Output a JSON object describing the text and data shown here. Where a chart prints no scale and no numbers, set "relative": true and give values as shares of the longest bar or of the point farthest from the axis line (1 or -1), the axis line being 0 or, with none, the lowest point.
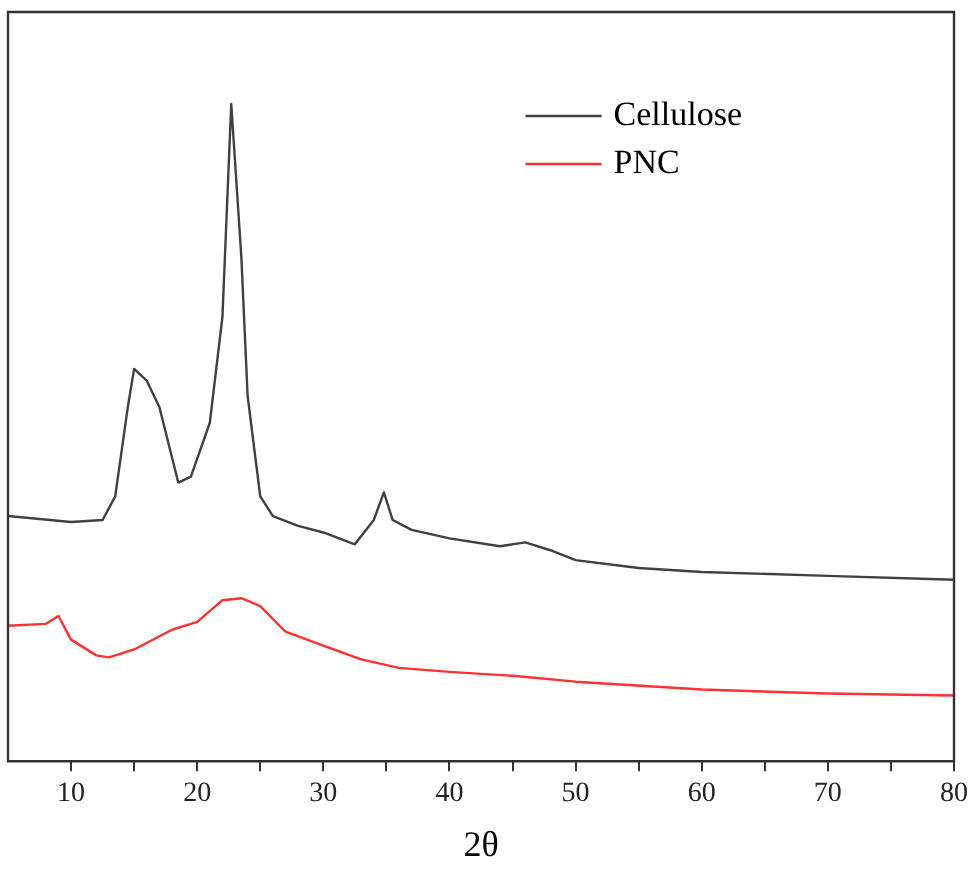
{
  "chart_data": {
    "type": "line",
    "xlabel": "2θ",
    "relative": true,
    "xlim": [
      5,
      80
    ],
    "xticks": [
      10,
      {
        "value": 15,
        "label": null
      },
      20,
      {
        "value": 25,
        "label": null
      },
      30,
      {
        "value": 35,
        "label": null
      },
      40,
      {
        "value": 45,
        "label": null
      },
      50,
      {
        "value": 55,
        "label": null
      },
      60,
      {
        "value": 65,
        "label": null
      },
      70,
      {
        "value": 75,
        "label": null
      },
      80
    ],
    "tick_labels": "x",
    "grid": false,
    "legend": "top right",
    "marker": "none",
    "line_style": "solid",
    "series": [
      {
        "name": "Cellulose",
        "color": "#404040",
        "x": [
          5,
          10,
          12.5,
          13.5,
          14.5,
          15,
          16,
          17,
          18.5,
          19.5,
          21,
          22,
          22.7,
          23.5,
          24,
          25,
          26,
          28,
          30,
          32.5,
          34,
          34.8,
          35.5,
          37,
          40,
          44,
          46,
          48,
          50,
          55,
          60,
          70,
          80
        ],
        "values": [
          0.373,
          0.364,
          0.367,
          0.403,
          0.539,
          0.597,
          0.579,
          0.539,
          0.424,
          0.433,
          0.515,
          0.676,
          1,
          0.767,
          0.555,
          0.403,
          0.373,
          0.358,
          0.348,
          0.33,
          0.367,
          0.409,
          0.367,
          0.352,
          0.339,
          0.327,
          0.333,
          0.321,
          0.306,
          0.294,
          0.288,
          0.282,
          0.276
        ]
      },
      {
        "name": "PNC",
        "color": "#ff3030",
        "x": [
          5,
          8,
          9,
          10,
          12,
          13,
          15,
          18,
          20,
          22,
          23.5,
          25,
          27,
          30,
          33,
          36,
          40,
          45,
          50,
          60,
          70,
          80
        ],
        "values": [
          0.206,
          0.209,
          0.221,
          0.185,
          0.161,
          0.158,
          0.17,
          0.2,
          0.212,
          0.245,
          0.248,
          0.236,
          0.197,
          0.176,
          0.155,
          0.142,
          0.136,
          0.13,
          0.121,
          0.109,
          0.103,
          0.1
        ]
      }
    ]
  }
}
